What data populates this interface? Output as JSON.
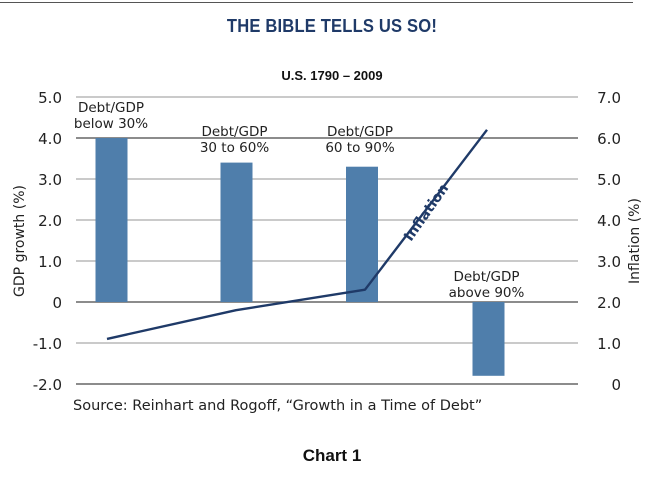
{
  "header": {
    "title": "THE BIBLE TELLS US SO!",
    "caption": "Chart 1"
  },
  "colors": {
    "title": "#1f3a68",
    "bar": "#4f7eab",
    "line": "#1f3a68",
    "grid": "#999999"
  },
  "chart_data": {
    "type": "bar",
    "title": "U.S. 1790 – 2009",
    "source": "Source: Reinhart and Rogoff, “Growth in a Time of Debt”",
    "categories": [
      "Debt/GDP below 30%",
      "Debt/GDP 30 to 60%",
      "Debt/GDP 60 to 90%",
      "Debt/GDP above 90%"
    ],
    "category_labels": [
      [
        "Debt/GDP",
        "below 30%"
      ],
      [
        "Debt/GDP",
        "30 to 60%"
      ],
      [
        "Debt/GDP",
        "60 to 90%"
      ],
      [
        "Debt/GDP",
        "above 90%"
      ]
    ],
    "series": [
      {
        "name": "GDP growth",
        "type": "bar",
        "axis": "left",
        "values": [
          4.0,
          3.4,
          3.3,
          -1.8
        ]
      },
      {
        "name": "Inflation",
        "type": "line",
        "axis": "right",
        "values": [
          1.1,
          1.8,
          2.3,
          6.2
        ]
      }
    ],
    "ylabel": "GDP growth (%)",
    "ylabel_right": "Inflation (%)",
    "ylim": [
      -2.0,
      5.0
    ],
    "ylim_right": [
      0,
      7.0
    ],
    "yticks": [
      "5.0",
      "4.0",
      "3.0",
      "2.0",
      "1.0",
      "0",
      "-1.0",
      "-2.0"
    ],
    "yticks_right": [
      "7.0",
      "6.0",
      "5.0",
      "4.0",
      "3.0",
      "2.0",
      "1.0",
      "0"
    ],
    "line_label": "Inflation",
    "grid": true,
    "legend": "none"
  }
}
